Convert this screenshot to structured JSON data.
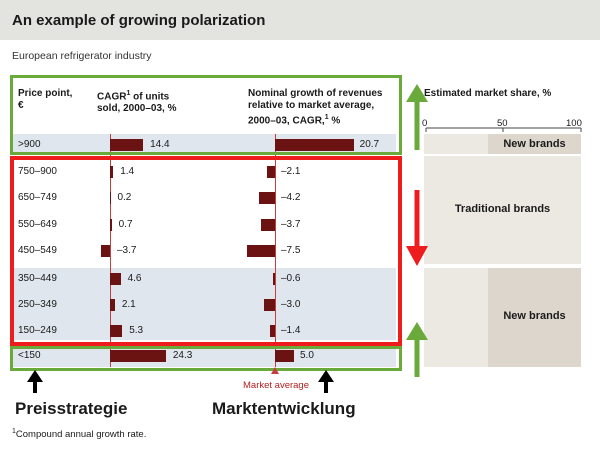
{
  "header": {
    "title": "An example of growing polarization",
    "subtitle": "European refrigerator industry"
  },
  "columns": {
    "price_point_line1": "Price point,",
    "price_point_line2": "€",
    "cagr_line1a": "CAGR",
    "cagr_sup": "1",
    "cagr_line1b": " of units",
    "cagr_line2": "sold, 2000–03, %",
    "nominal_line1": "Nominal growth of revenues",
    "nominal_line2": "relative to market average,",
    "nominal_line3a": "2000–03, CAGR,",
    "nominal_sup": "1",
    "nominal_line3b": " %",
    "share_title": "Estimated market share, %"
  },
  "share_scale": {
    "min_label": "0",
    "mid_label": "50",
    "max_label": "100"
  },
  "segments": {
    "premium": "New brands",
    "traditional": "Traditional brands",
    "low": "New brands"
  },
  "market_average_label": "Market average",
  "annotations": {
    "left": "Preisstrategie",
    "right": "Marktentwicklung"
  },
  "footnote": {
    "sup": "1",
    "text": "Compound annual growth rate."
  },
  "colors": {
    "bar": "#6b1212",
    "green_box": "#6aaa3a",
    "red_box": "#ee1c1c",
    "band": "#e0e6ee",
    "share_panel": "#ece8e2"
  },
  "chart_data": {
    "type": "bar",
    "categories": [
      ">900",
      "750–900",
      "650–749",
      "550–649",
      "450–549",
      "350–449",
      "250–349",
      "150–249",
      "<150"
    ],
    "series": [
      {
        "name": "CAGR of units sold, 2000–03, %",
        "values": [
          14.4,
          1.4,
          0.2,
          0.7,
          -3.7,
          4.6,
          2.1,
          5.3,
          24.3
        ],
        "labels": [
          "14.4",
          "1.4",
          "0.2",
          "0.7",
          "–3.7",
          "4.6",
          "2.1",
          "5.3",
          "24.3"
        ]
      },
      {
        "name": "Nominal growth of revenues relative to market average, 2000–03, CAGR, %",
        "values": [
          20.7,
          -2.1,
          -4.2,
          -3.7,
          -7.5,
          -0.6,
          -3.0,
          -1.4,
          5.0
        ],
        "labels": [
          "20.7",
          "–2.1",
          "–4.2",
          "–3.7",
          "–7.5",
          "–0.6",
          "–3.0",
          "–1.4",
          "5.0"
        ]
      }
    ],
    "share_axis": {
      "min": 0,
      "max": 100
    }
  }
}
